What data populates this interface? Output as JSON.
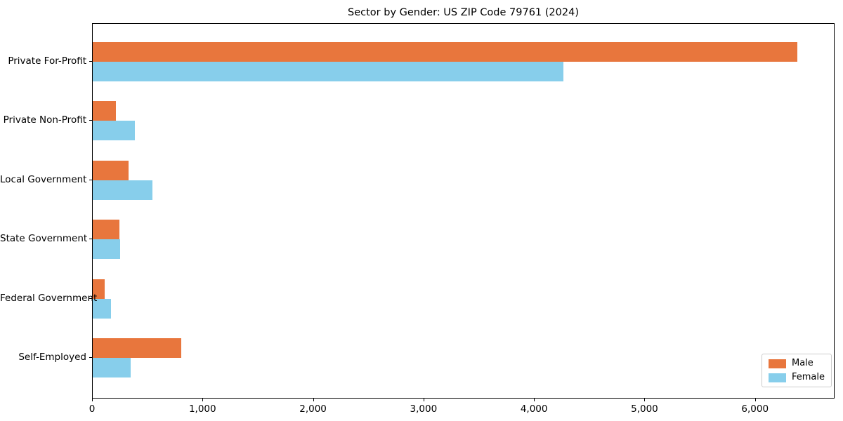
{
  "title": "Sector by Gender: US ZIP Code 79761 (2024)",
  "chart_data": {
    "type": "bar",
    "orientation": "horizontal",
    "title": "Sector by Gender: US ZIP Code 79761 (2024)",
    "categories": [
      "Private For-Profit",
      "Private Non-Profit",
      "Local Government",
      "State Government",
      "Federal Government",
      "Self-Employed"
    ],
    "series": [
      {
        "name": "Male",
        "color": "#e8763d",
        "values": [
          6390,
          210,
          325,
          245,
          110,
          805
        ]
      },
      {
        "name": "Female",
        "color": "#87ceeb",
        "values": [
          4270,
          380,
          540,
          250,
          165,
          345
        ]
      }
    ],
    "xlabel": "",
    "ylabel": "",
    "xlim": [
      0,
      6720
    ],
    "x_ticks": [
      0,
      1000,
      2000,
      3000,
      4000,
      5000,
      6000
    ],
    "x_tick_labels": [
      "0",
      "1,000",
      "2,000",
      "3,000",
      "4,000",
      "5,000",
      "6,000"
    ],
    "grid": false,
    "legend_position": "lower right",
    "legend_frame_color": "#cccccc",
    "axis_color": "#000000",
    "background_color": "#ffffff"
  }
}
